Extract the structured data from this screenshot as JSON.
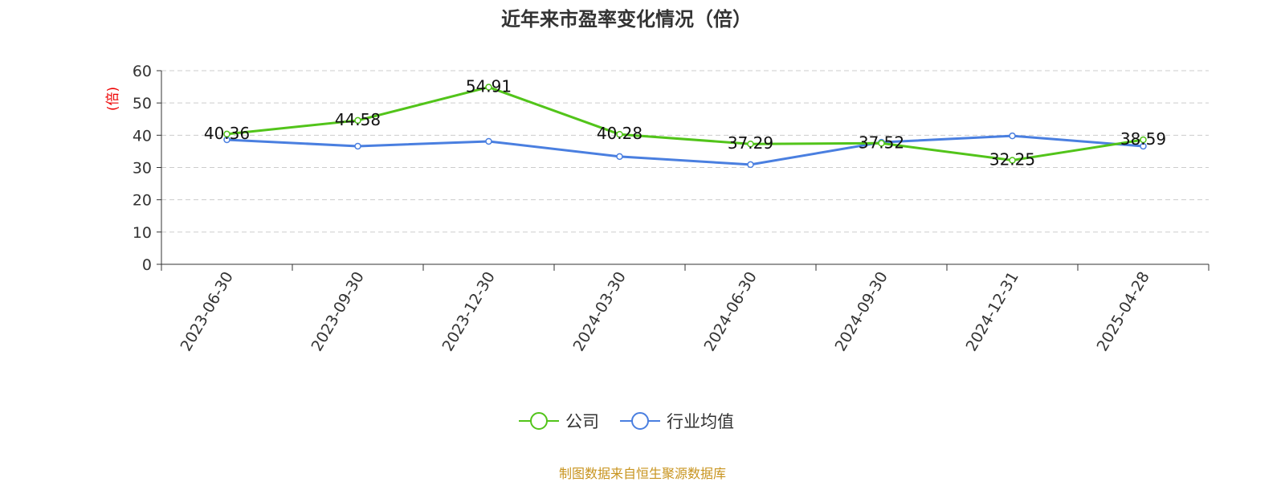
{
  "chart_data": {
    "type": "line",
    "title": "近年来市盈率变化情况（倍）",
    "ylabel": "(倍)",
    "xlabel": "",
    "ylim": [
      0,
      60
    ],
    "yticks": [
      0,
      10,
      20,
      30,
      40,
      50,
      60
    ],
    "grid": true,
    "legend_position": "bottom",
    "categories": [
      "2023-06-30",
      "2023-09-30",
      "2023-12-30",
      "2024-03-30",
      "2024-06-30",
      "2024-09-30",
      "2024-12-31",
      "2025-04-28"
    ],
    "series": [
      {
        "name": "公司",
        "color": "#52c41a",
        "values": [
          40.36,
          44.58,
          54.91,
          40.28,
          37.29,
          37.52,
          32.25,
          38.59
        ],
        "labels": [
          "40.36",
          "44.58",
          "54.91",
          "40.28",
          "37.29",
          "37.52",
          "32.25",
          "38.59"
        ]
      },
      {
        "name": "行业均值",
        "color": "#4a7fe0",
        "values": [
          38.6,
          36.6,
          38.1,
          33.4,
          30.9,
          37.8,
          39.8,
          36.6
        ]
      }
    ]
  },
  "footer": {
    "source": "制图数据来自恒生聚源数据库"
  }
}
